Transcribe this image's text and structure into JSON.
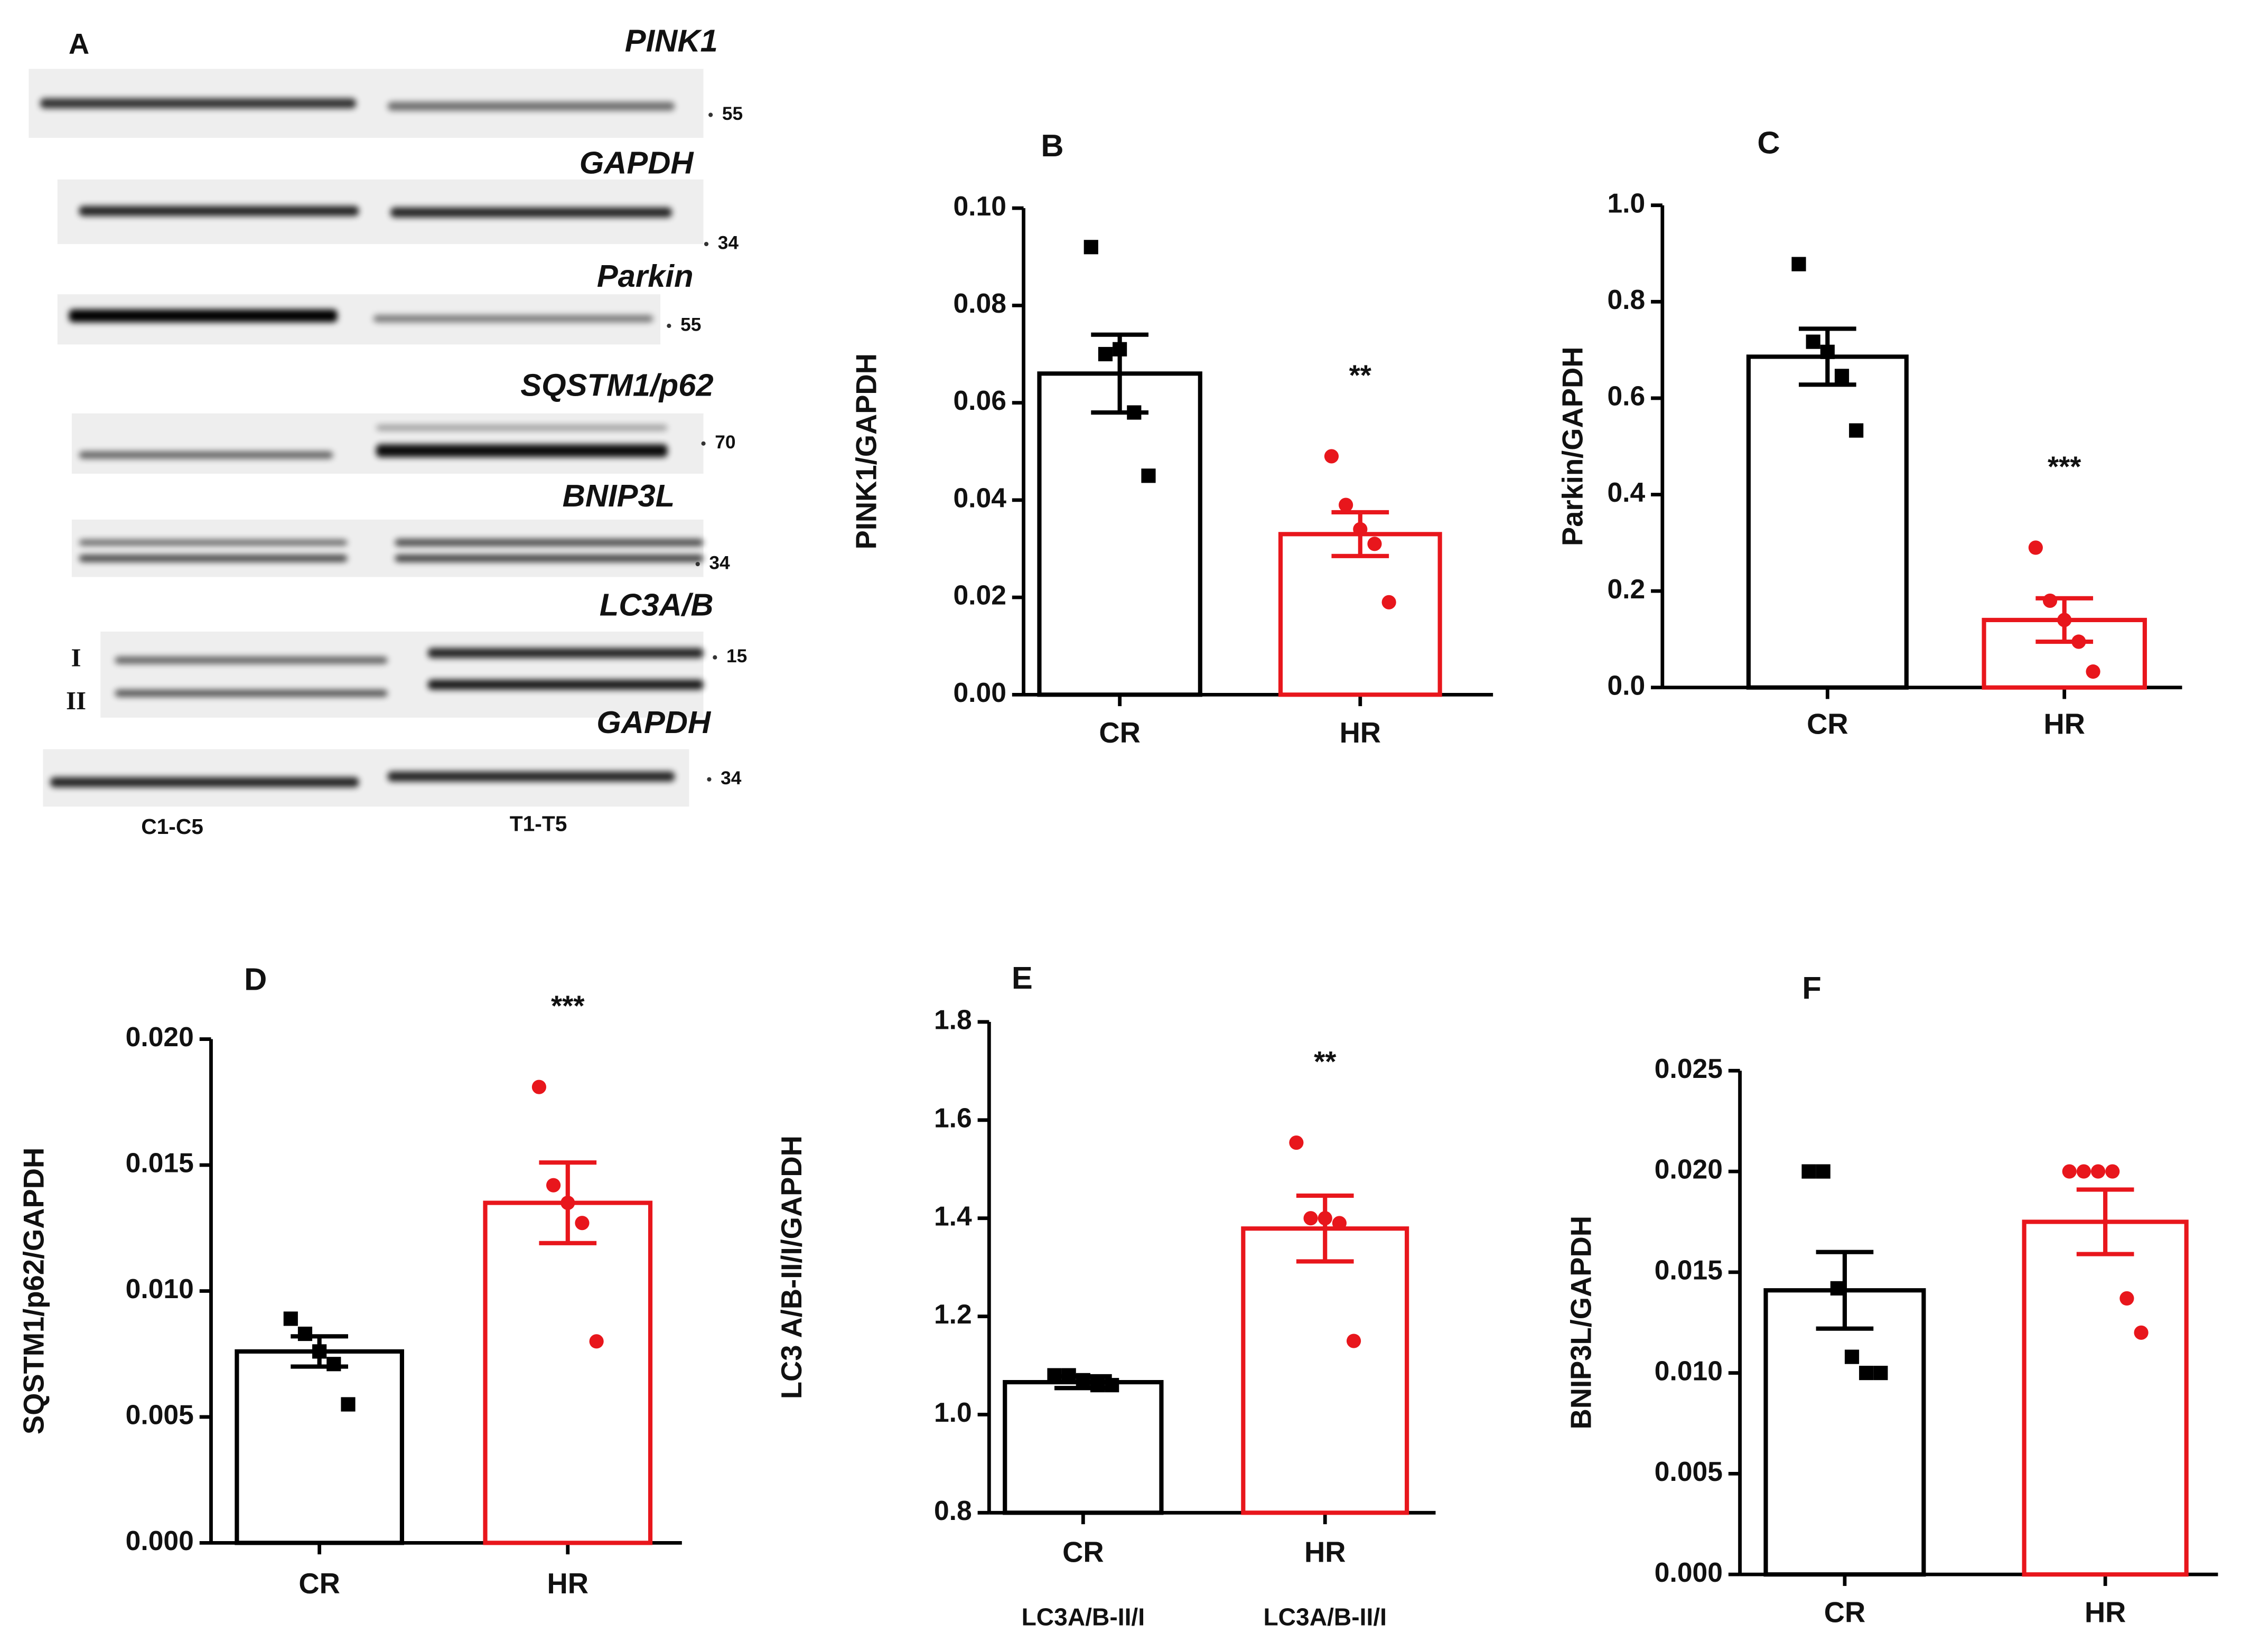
{
  "blot": {
    "panel": "A",
    "rows": [
      {
        "label": "PINK1",
        "marker": "55"
      },
      {
        "label": "GAPDH",
        "marker": "34"
      },
      {
        "label": "Parkin",
        "marker": "55"
      },
      {
        "label": "SQSTM1/p62",
        "marker": "70"
      },
      {
        "label": "BNIP3L",
        "marker": "34"
      },
      {
        "label": "LC3A/B",
        "marker": "15"
      },
      {
        "label": "GAPDH",
        "marker": "34"
      }
    ],
    "bands": [
      "I",
      "II"
    ],
    "groups": [
      "C1-C5",
      "T1-T5"
    ]
  },
  "chart_data": [
    {
      "type": "bar",
      "panel": "B",
      "ylabel": "PINK1/GAPDH",
      "categories": [
        "CR",
        "HR"
      ],
      "values": [
        0.066,
        0.033
      ],
      "errors": [
        0.008,
        0.0045
      ],
      "colors": [
        "#000000",
        "#e8161c"
      ],
      "points": [
        [
          0.092,
          0.07,
          0.071,
          0.058,
          0.045
        ],
        [
          0.049,
          0.039,
          0.034,
          0.031,
          0.019
        ]
      ],
      "annotations": [
        null,
        "**"
      ],
      "ylim": [
        0,
        0.1
      ],
      "yticks": [
        {
          "value": 0,
          "label": "0.00"
        },
        0.02,
        0.04,
        0.06,
        0.08,
        {
          "value": 0.1,
          "label": "0.10"
        }
      ]
    },
    {
      "type": "bar",
      "panel": "C",
      "ylabel": "Parkin/GAPDH",
      "categories": [
        "CR",
        "HR"
      ],
      "values": [
        0.686,
        0.14
      ],
      "errors": [
        0.058,
        0.045
      ],
      "colors": [
        "#000000",
        "#e8161c"
      ],
      "points": [
        [
          0.878,
          0.717,
          0.696,
          0.646,
          0.533
        ],
        [
          0.29,
          0.18,
          0.14,
          0.095,
          0.033
        ]
      ],
      "annotations": [
        null,
        "***"
      ],
      "ylim": [
        0,
        1
      ],
      "yticks": [
        {
          "value": 0,
          "label": "0.0"
        },
        0.2,
        0.4,
        0.6,
        0.8,
        {
          "value": 1,
          "label": "1.0"
        }
      ]
    },
    {
      "type": "bar",
      "panel": "D",
      "ylabel": "SQSTM1/p62/GAPDH",
      "categories": [
        "CR",
        "HR"
      ],
      "values": [
        0.0076,
        0.0135
      ],
      "errors": [
        0.0006,
        0.0016
      ],
      "colors": [
        "#000000",
        "#e8161c"
      ],
      "points": [
        [
          0.0089,
          0.0083,
          0.0076,
          0.0071,
          0.0055
        ],
        [
          0.0181,
          0.0142,
          0.0135,
          0.0127,
          0.008
        ]
      ],
      "annotations": [
        null,
        "***"
      ],
      "ylim": [
        0,
        0.02
      ],
      "yticks": [
        {
          "value": 0,
          "label": "0.000"
        },
        0.005,
        {
          "value": 0.01,
          "label": "0.010"
        },
        0.015,
        {
          "value": 0.02,
          "label": "0.020"
        }
      ]
    },
    {
      "type": "bar",
      "panel": "E",
      "ylabel": "LC3 A/B-II/I/GAPDH",
      "categories": [
        "CR",
        "HR"
      ],
      "sublabels": [
        "LC3A/B-II/I",
        "LC3A/B-II/I"
      ],
      "values": [
        1.066,
        1.379
      ],
      "errors": [
        0.012,
        0.067
      ],
      "colors": [
        "#000000",
        "#e8161c"
      ],
      "points": [
        [
          1.08,
          1.08,
          1.07,
          1.06,
          1.06
        ],
        [
          1.554,
          1.4,
          1.4,
          1.39,
          1.15
        ]
      ],
      "annotations": [
        null,
        "**"
      ],
      "ylim": [
        0.8,
        1.8
      ],
      "yticks": [
        0.8,
        {
          "value": 1,
          "label": "1.0"
        },
        1.2,
        1.4,
        1.6,
        1.8
      ]
    },
    {
      "type": "bar",
      "panel": "F",
      "ylabel": "BNIP3L/GAPDH",
      "categories": [
        "CR",
        "HR"
      ],
      "values": [
        0.0141,
        0.0175
      ],
      "errors": [
        0.0019,
        0.0016
      ],
      "colors": [
        "#000000",
        "#e8161c"
      ],
      "points": [
        [
          0.02,
          0.02,
          0.0142,
          0.0108,
          0.01,
          0.01
        ],
        [
          0.02,
          0.02,
          0.02,
          0.02,
          0.0137,
          0.012
        ]
      ],
      "annotations": [
        null,
        null
      ],
      "ylim": [
        0,
        0.025
      ],
      "yticks": [
        {
          "value": 0,
          "label": "0.000"
        },
        0.005,
        {
          "value": 0.01,
          "label": "0.010"
        },
        0.015,
        {
          "value": 0.02,
          "label": "0.020"
        },
        0.025
      ]
    }
  ]
}
